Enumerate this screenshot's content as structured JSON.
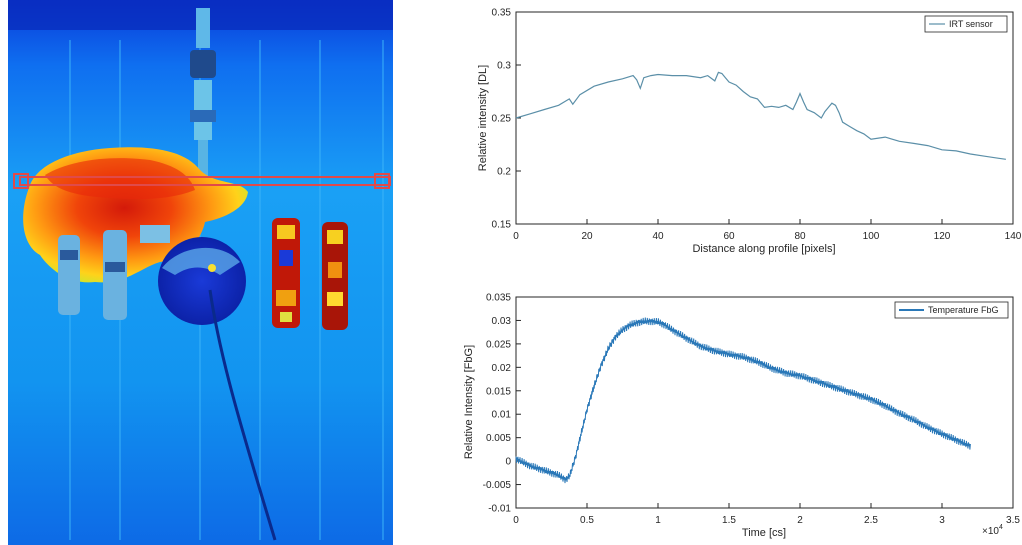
{
  "thermal_image": {
    "colormap": "jet",
    "profile_line_color": "#e04a4a"
  },
  "chart_data": [
    {
      "type": "line",
      "xlabel": "Distance along profile [pixels]",
      "ylabel": "Relative intensity [DL]",
      "xlim": [
        0,
        140
      ],
      "ylim": [
        0.15,
        0.35
      ],
      "xticks": [
        "0",
        "20",
        "40",
        "60",
        "80",
        "100",
        "120",
        "140"
      ],
      "yticks": [
        "0.15",
        "0.2",
        "0.25",
        "0.3",
        "0.35"
      ],
      "grid": false,
      "legend_position": "top-right",
      "series": [
        {
          "name": "IRT sensor",
          "color": "#5b8fa8",
          "x": [
            0,
            4,
            8,
            12,
            15,
            16,
            18,
            22,
            26,
            30,
            33,
            34,
            35,
            36,
            38,
            40,
            44,
            48,
            52,
            54,
            56,
            57,
            58,
            59,
            60,
            62,
            64,
            66,
            68,
            70,
            72,
            74,
            76,
            78,
            79,
            80,
            81,
            82,
            84,
            86,
            87,
            88,
            89,
            90,
            91,
            92,
            94,
            96,
            98,
            100,
            104,
            108,
            112,
            116,
            120,
            124,
            128,
            132,
            136,
            138
          ],
          "y": [
            0.25,
            0.254,
            0.258,
            0.262,
            0.268,
            0.263,
            0.272,
            0.28,
            0.284,
            0.287,
            0.29,
            0.286,
            0.278,
            0.288,
            0.29,
            0.291,
            0.29,
            0.29,
            0.288,
            0.29,
            0.285,
            0.293,
            0.292,
            0.288,
            0.284,
            0.281,
            0.275,
            0.27,
            0.268,
            0.26,
            0.261,
            0.26,
            0.262,
            0.258,
            0.265,
            0.273,
            0.265,
            0.258,
            0.255,
            0.25,
            0.256,
            0.26,
            0.264,
            0.262,
            0.255,
            0.246,
            0.242,
            0.238,
            0.235,
            0.23,
            0.232,
            0.228,
            0.226,
            0.224,
            0.22,
            0.219,
            0.216,
            0.214,
            0.212,
            0.211
          ]
        }
      ]
    },
    {
      "type": "line",
      "xlabel": "Time [cs]",
      "ylabel": "Relative Intensity [FbG]",
      "xlim": [
        0,
        3.5
      ],
      "ylim": [
        -0.01,
        0.035
      ],
      "x_exponent": "×10",
      "x_exponent_power": "4",
      "xticks": [
        "0",
        "0.5",
        "1",
        "1.5",
        "2",
        "2.5",
        "3",
        "3.5"
      ],
      "yticks": [
        "-0.01",
        "-0.005",
        "0",
        "0.005",
        "0.01",
        "0.015",
        "0.02",
        "0.025",
        "0.03",
        "0.035"
      ],
      "grid": false,
      "legend_position": "top-right",
      "series": [
        {
          "name": "Temperature FbG",
          "color": "#2a78b8",
          "x": [
            0,
            0.1,
            0.2,
            0.3,
            0.35,
            0.38,
            0.42,
            0.46,
            0.5,
            0.55,
            0.6,
            0.65,
            0.7,
            0.75,
            0.8,
            0.85,
            0.9,
            0.95,
            1.0,
            1.05,
            1.1,
            1.2,
            1.3,
            1.4,
            1.5,
            1.6,
            1.7,
            1.8,
            1.9,
            2.0,
            2.1,
            2.2,
            2.3,
            2.4,
            2.5,
            2.6,
            2.7,
            2.8,
            2.9,
            3.0,
            3.1,
            3.2
          ],
          "y": [
            0.0005,
            -0.001,
            -0.002,
            -0.003,
            -0.004,
            -0.003,
            0.001,
            0.006,
            0.011,
            0.016,
            0.0205,
            0.024,
            0.0265,
            0.028,
            0.029,
            0.0295,
            0.0298,
            0.0298,
            0.0297,
            0.029,
            0.028,
            0.0262,
            0.0245,
            0.0235,
            0.0228,
            0.0222,
            0.0212,
            0.0198,
            0.0188,
            0.0182,
            0.0172,
            0.0162,
            0.0152,
            0.0142,
            0.0132,
            0.0118,
            0.0102,
            0.0088,
            0.0072,
            0.0058,
            0.0045,
            0.0032
          ]
        }
      ]
    }
  ]
}
